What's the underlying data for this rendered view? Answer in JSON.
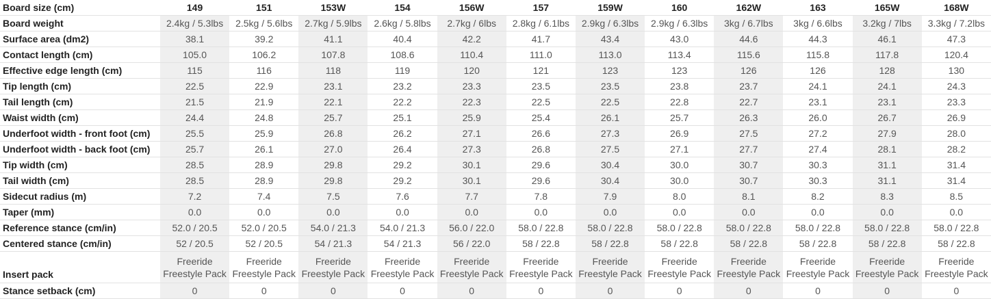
{
  "table": {
    "header": {
      "label": "Board size (cm)",
      "sizes": [
        "149",
        "151",
        "153W",
        "154",
        "156W",
        "157",
        "159W",
        "160",
        "162W",
        "163",
        "165W",
        "168W"
      ]
    },
    "rows": [
      {
        "label": "Board weight",
        "values": [
          "2.4kg / 5.3lbs",
          "2.5kg / 5.6lbs",
          "2.7kg / 5.9lbs",
          "2.6kg / 5.8lbs",
          "2.7kg / 6lbs",
          "2.8kg / 6.1lbs",
          "2.9kg / 6.3lbs",
          "2.9kg / 6.3lbs",
          "3kg / 6.7lbs",
          "3kg / 6.6lbs",
          "3.2kg / 7lbs",
          "3.3kg / 7.2lbs"
        ]
      },
      {
        "label": "Surface area (dm2)",
        "values": [
          "38.1",
          "39.2",
          "41.1",
          "40.4",
          "42.2",
          "41.7",
          "43.4",
          "43.0",
          "44.6",
          "44.3",
          "46.1",
          "47.3"
        ]
      },
      {
        "label": "Contact length (cm)",
        "values": [
          "105.0",
          "106.2",
          "107.8",
          "108.6",
          "110.4",
          "111.0",
          "113.0",
          "113.4",
          "115.6",
          "115.8",
          "117.8",
          "120.4"
        ]
      },
      {
        "label": "Effective edge length (cm)",
        "values": [
          "115",
          "116",
          "118",
          "119",
          "120",
          "121",
          "123",
          "123",
          "126",
          "126",
          "128",
          "130"
        ]
      },
      {
        "label": "Tip length (cm)",
        "values": [
          "22.5",
          "22.9",
          "23.1",
          "23.2",
          "23.3",
          "23.5",
          "23.5",
          "23.8",
          "23.7",
          "24.1",
          "24.1",
          "24.3"
        ]
      },
      {
        "label": "Tail length (cm)",
        "values": [
          "21.5",
          "21.9",
          "22.1",
          "22.2",
          "22.3",
          "22.5",
          "22.5",
          "22.8",
          "22.7",
          "23.1",
          "23.1",
          "23.3"
        ]
      },
      {
        "label": "Waist width (cm)",
        "values": [
          "24.4",
          "24.8",
          "25.7",
          "25.1",
          "25.9",
          "25.4",
          "26.1",
          "25.7",
          "26.3",
          "26.0",
          "26.7",
          "26.9"
        ]
      },
      {
        "label": "Underfoot width - front foot (cm)",
        "values": [
          "25.5",
          "25.9",
          "26.8",
          "26.2",
          "27.1",
          "26.6",
          "27.3",
          "26.9",
          "27.5",
          "27.2",
          "27.9",
          "28.0"
        ]
      },
      {
        "label": "Underfoot width - back foot (cm)",
        "values": [
          "25.7",
          "26.1",
          "27.0",
          "26.4",
          "27.3",
          "26.8",
          "27.5",
          "27.1",
          "27.7",
          "27.4",
          "28.1",
          "28.2"
        ]
      },
      {
        "label": "Tip width (cm)",
        "values": [
          "28.5",
          "28.9",
          "29.8",
          "29.2",
          "30.1",
          "29.6",
          "30.4",
          "30.0",
          "30.7",
          "30.3",
          "31.1",
          "31.4"
        ]
      },
      {
        "label": "Tail width (cm)",
        "values": [
          "28.5",
          "28.9",
          "29.8",
          "29.2",
          "30.1",
          "29.6",
          "30.4",
          "30.0",
          "30.7",
          "30.3",
          "31.1",
          "31.4"
        ]
      },
      {
        "label": "Sidecut radius (m)",
        "values": [
          "7.2",
          "7.4",
          "7.5",
          "7.6",
          "7.7",
          "7.8",
          "7.9",
          "8.0",
          "8.1",
          "8.2",
          "8.3",
          "8.5"
        ]
      },
      {
        "label": "Taper (mm)",
        "values": [
          "0.0",
          "0.0",
          "0.0",
          "0.0",
          "0.0",
          "0.0",
          "0.0",
          "0.0",
          "0.0",
          "0.0",
          "0.0",
          "0.0"
        ]
      },
      {
        "label": "Reference stance (cm/in)",
        "values": [
          "52.0 / 20.5",
          "52.0 / 20.5",
          "54.0 / 21.3",
          "54.0 / 21.3",
          "56.0 / 22.0",
          "58.0 / 22.8",
          "58.0 / 22.8",
          "58.0 / 22.8",
          "58.0 / 22.8",
          "58.0 / 22.8",
          "58.0 / 22.8",
          "58.0 / 22.8"
        ]
      },
      {
        "label": "Centered stance (cm/in)",
        "values": [
          "52 / 20.5",
          "52 / 20.5",
          "54 / 21.3",
          "54 / 21.3",
          "56 / 22.0",
          "58 / 22.8",
          "58 / 22.8",
          "58 / 22.8",
          "58 / 22.8",
          "58 / 22.8",
          "58 / 22.8",
          "58 / 22.8"
        ]
      },
      {
        "label": "Insert pack",
        "values": [
          "Freeride Freestyle Pack",
          "Freeride Freestyle Pack",
          "Freeride Freestyle Pack",
          "Freeride Freestyle Pack",
          "Freeride Freestyle Pack",
          "Freeride Freestyle Pack",
          "Freeride Freestyle Pack",
          "Freeride Freestyle Pack",
          "Freeride Freestyle Pack",
          "Freeride Freestyle Pack",
          "Freeride Freestyle Pack",
          "Freeride Freestyle Pack"
        ]
      },
      {
        "label": "Stance setback (cm)",
        "values": [
          "0",
          "0",
          "0",
          "0",
          "0",
          "0",
          "0",
          "0",
          "0",
          "0",
          "0",
          "0"
        ]
      }
    ]
  }
}
